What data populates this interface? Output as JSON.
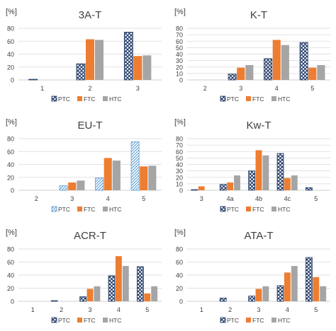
{
  "colors": {
    "ptc": "#2e75b6",
    "ftc": "#ed7d31",
    "htc": "#a5a5a5",
    "grid": "#d9d9d9",
    "axis": "#bfbfbf",
    "text": "#404040"
  },
  "legend_labels": [
    "PTC",
    "FTC",
    "HTC"
  ],
  "chart_data": [
    {
      "type": "bar",
      "title": "3A-T",
      "ylabel": "[%]",
      "ylim": [
        0,
        80
      ],
      "yticks": [
        0,
        20,
        40,
        60,
        80
      ],
      "categories": [
        "1",
        "2",
        "3"
      ],
      "legend_position": "bottom",
      "grid": true,
      "series": [
        {
          "name": "PTC",
          "pattern": "crosshatch",
          "values": [
            1,
            25,
            74
          ]
        },
        {
          "name": "FTC",
          "values": [
            0,
            63,
            37
          ]
        },
        {
          "name": "HTC",
          "values": [
            0,
            62,
            38
          ]
        }
      ]
    },
    {
      "type": "bar",
      "title": "K-T",
      "ylabel": "[%]",
      "ylim": [
        0,
        80
      ],
      "yticks": [
        0,
        10,
        20,
        30,
        40,
        50,
        60,
        70,
        80
      ],
      "categories": [
        "2",
        "3",
        "4",
        "5"
      ],
      "legend_position": "bottom",
      "grid": true,
      "series": [
        {
          "name": "PTC",
          "pattern": "crosshatch",
          "values": [
            0,
            9,
            33,
            58
          ]
        },
        {
          "name": "FTC",
          "values": [
            0,
            19,
            62,
            19
          ]
        },
        {
          "name": "HTC",
          "values": [
            0,
            23,
            54,
            23
          ]
        }
      ]
    },
    {
      "type": "bar",
      "title": "EU-T",
      "ylabel": "[%]",
      "ylim": [
        0,
        80
      ],
      "yticks": [
        0,
        20,
        40,
        60,
        80
      ],
      "categories": [
        "2",
        "3",
        "4",
        "5"
      ],
      "legend_position": "bottom",
      "grid": true,
      "series": [
        {
          "name": "PTC",
          "pattern": "hatch",
          "values": [
            0,
            7,
            19,
            75
          ]
        },
        {
          "name": "FTC",
          "values": [
            0,
            12,
            50,
            37
          ]
        },
        {
          "name": "HTC",
          "values": [
            0,
            15,
            46,
            38
          ]
        }
      ]
    },
    {
      "type": "bar",
      "title": "Kw-T",
      "ylabel": "[%]",
      "ylim": [
        0,
        80
      ],
      "yticks": [
        0,
        10,
        20,
        30,
        40,
        50,
        60,
        70,
        80
      ],
      "categories": [
        "3",
        "4a",
        "4b",
        "4c",
        "5"
      ],
      "legend_position": "bottom",
      "grid": true,
      "series": [
        {
          "name": "PTC",
          "pattern": "crosshatch",
          "values": [
            1,
            9,
            30,
            57,
            4
          ]
        },
        {
          "name": "FTC",
          "values": [
            6,
            12,
            62,
            19,
            0
          ]
        },
        {
          "name": "HTC",
          "values": [
            0,
            23,
            54,
            23,
            0
          ]
        }
      ]
    },
    {
      "type": "bar",
      "title": "ACR-T",
      "ylabel": "[%]",
      "ylim": [
        0,
        80
      ],
      "yticks": [
        0,
        20,
        40,
        60,
        80
      ],
      "categories": [
        "1",
        "2",
        "3",
        "4",
        "5"
      ],
      "legend_position": "bottom",
      "grid": true,
      "series": [
        {
          "name": "PTC",
          "pattern": "crosshatch",
          "values": [
            0,
            1,
            7,
            39,
            53
          ]
        },
        {
          "name": "FTC",
          "values": [
            0,
            0,
            19,
            69,
            12
          ]
        },
        {
          "name": "HTC",
          "values": [
            0,
            0,
            23,
            54,
            23
          ]
        }
      ]
    },
    {
      "type": "bar",
      "title": "ATA-T",
      "ylabel": "[%]",
      "ylim": [
        0,
        80
      ],
      "yticks": [
        0,
        20,
        40,
        60,
        80
      ],
      "categories": [
        "1",
        "2",
        "3",
        "4",
        "5"
      ],
      "legend_position": "bottom",
      "grid": true,
      "series": [
        {
          "name": "PTC",
          "pattern": "crosshatch",
          "values": [
            0,
            5,
            8,
            24,
            67
          ]
        },
        {
          "name": "FTC",
          "values": [
            0,
            0,
            19,
            44,
            37
          ]
        },
        {
          "name": "HTC",
          "values": [
            0,
            0,
            23,
            54,
            23
          ]
        }
      ]
    }
  ]
}
